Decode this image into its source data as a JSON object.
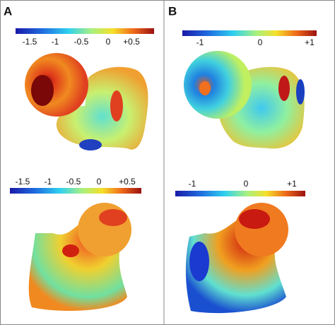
{
  "panels": [
    {
      "label": "A",
      "colorbars": [
        {
          "ticks": [
            "-1.5",
            "-1",
            "-0.5",
            "0",
            "+0.5"
          ]
        },
        {
          "ticks": [
            "-1.5",
            "-1",
            "-0.5",
            "0",
            "+0.5"
          ]
        }
      ]
    },
    {
      "label": "B",
      "colorbars": [
        {
          "ticks": [
            "-1",
            "0",
            "+1"
          ]
        },
        {
          "ticks": [
            "-1",
            "0",
            "+1"
          ]
        }
      ]
    }
  ]
}
